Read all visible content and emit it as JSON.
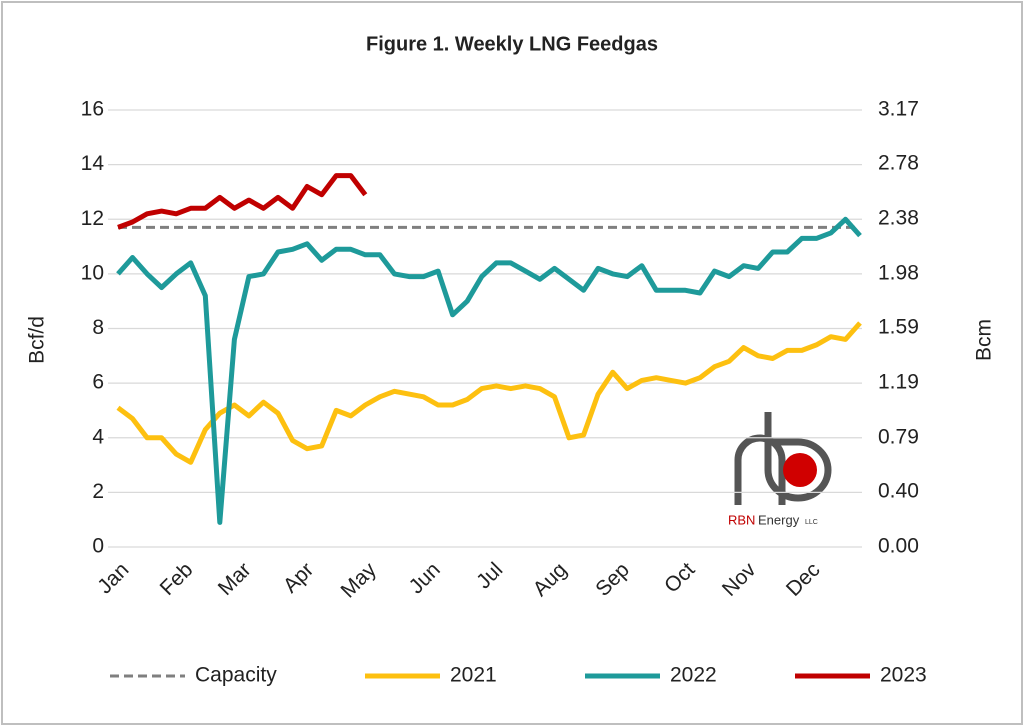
{
  "chart_data": {
    "type": "line",
    "title": "Figure 1. Weekly LNG Feedgas",
    "y_label": "Bcf/d",
    "y2_label": "Bcm",
    "x": [
      1,
      2,
      3,
      4,
      5,
      6,
      7,
      8,
      9,
      10,
      11,
      12,
      13,
      14,
      15,
      16,
      17,
      18,
      19,
      20,
      21,
      22,
      23,
      24,
      25,
      26,
      27,
      28,
      29,
      30,
      31,
      32,
      33,
      34,
      35,
      36,
      37,
      38,
      39,
      40,
      41,
      42,
      43,
      44,
      45,
      46,
      47,
      48,
      49,
      50,
      51,
      52
    ],
    "xlim": [
      1,
      52
    ],
    "xticks": [
      {
        "value": 1,
        "label": "Jan"
      },
      {
        "value": 5.4,
        "label": "Feb"
      },
      {
        "value": 9.4,
        "label": "Mar"
      },
      {
        "value": 13.7,
        "label": "Apr"
      },
      {
        "value": 18,
        "label": "May"
      },
      {
        "value": 22.4,
        "label": "Jun"
      },
      {
        "value": 26.7,
        "label": "Jul"
      },
      {
        "value": 31.1,
        "label": "Aug"
      },
      {
        "value": 35.4,
        "label": "Sep"
      },
      {
        "value": 39.9,
        "label": "Oct"
      },
      {
        "value": 44.1,
        "label": "Nov"
      },
      {
        "value": 48.5,
        "label": "Dec"
      }
    ],
    "ylim": [
      0,
      16
    ],
    "yticks": [
      0,
      2,
      4,
      6,
      8,
      10,
      12,
      14,
      16
    ],
    "y2lim": [
      0,
      3.17
    ],
    "y2ticks": [
      {
        "value": 0,
        "label": "0.00"
      },
      {
        "value": 0.4,
        "label": "0.40"
      },
      0.79,
      1.19,
      1.59,
      1.98,
      2.38,
      2.78,
      3.17
    ],
    "grid": true,
    "legend": "bottom",
    "series": [
      {
        "name": "Capacity",
        "color": "#7f7f7f",
        "dashed": true,
        "values": [
          11.7,
          11.7,
          11.7,
          11.7,
          11.7,
          11.7,
          11.7,
          11.7,
          11.7,
          11.7,
          11.7,
          11.7,
          11.7,
          11.7,
          11.7,
          11.7,
          11.7,
          11.7,
          11.7,
          11.7,
          11.7,
          11.7,
          11.7,
          11.7,
          11.7,
          11.7,
          11.7,
          11.7,
          11.7,
          11.7,
          11.7,
          11.7,
          11.7,
          11.7,
          11.7,
          11.7,
          11.7,
          11.7,
          11.7,
          11.7,
          11.7,
          11.7,
          11.7,
          11.7,
          11.7,
          11.7,
          11.7,
          11.7,
          11.7,
          11.7,
          11.7,
          11.7
        ]
      },
      {
        "name": "2021",
        "color": "#fdc010",
        "values": [
          5.1,
          4.7,
          4.0,
          4.0,
          3.4,
          3.1,
          4.3,
          4.9,
          5.2,
          4.8,
          5.3,
          4.9,
          3.9,
          3.6,
          3.7,
          5.0,
          4.8,
          5.2,
          5.5,
          5.7,
          5.6,
          5.5,
          5.2,
          5.2,
          5.4,
          5.8,
          5.9,
          5.8,
          5.9,
          5.8,
          5.5,
          4.0,
          4.1,
          5.6,
          6.4,
          5.8,
          6.1,
          6.2,
          6.1,
          6.0,
          6.2,
          6.6,
          6.8,
          7.3,
          7.0,
          6.9,
          7.2,
          7.2,
          7.4,
          7.7,
          7.6,
          8.2
        ]
      },
      {
        "name": "2022",
        "color": "#1e9a9a",
        "values": [
          10.0,
          10.6,
          10.0,
          9.5,
          10.0,
          10.4,
          9.2,
          0.9,
          7.6,
          9.9,
          10.0,
          10.8,
          10.9,
          11.1,
          10.5,
          10.9,
          10.9,
          10.7,
          10.7,
          10.0,
          9.9,
          9.9,
          10.1,
          8.5,
          9.0,
          9.9,
          10.4,
          10.4,
          10.1,
          9.8,
          10.2,
          9.8,
          9.4,
          10.2,
          10.0,
          9.9,
          10.3,
          9.4,
          9.4,
          9.4,
          9.3,
          10.1,
          9.9,
          10.3,
          10.2,
          10.8,
          10.8,
          11.3,
          11.3,
          11.5,
          12.0,
          11.4
        ]
      },
      {
        "name": "2023",
        "color": "#c00000",
        "values": [
          11.7,
          11.9,
          12.2,
          12.3,
          12.2,
          12.4,
          12.4,
          12.8,
          12.4,
          12.7,
          12.4,
          12.8,
          12.4,
          13.2,
          12.9,
          13.6,
          13.6,
          12.9,
          null,
          null,
          null,
          null,
          null,
          null,
          null,
          null,
          null,
          null,
          null,
          null,
          null,
          null,
          null,
          null,
          null,
          null,
          null,
          null,
          null,
          null,
          null,
          null,
          null,
          null,
          null,
          null,
          null,
          null,
          null,
          null,
          null,
          null
        ]
      }
    ],
    "logo": {
      "brand": "RBN",
      "name": "Energy",
      "suffix": "LLC"
    }
  }
}
